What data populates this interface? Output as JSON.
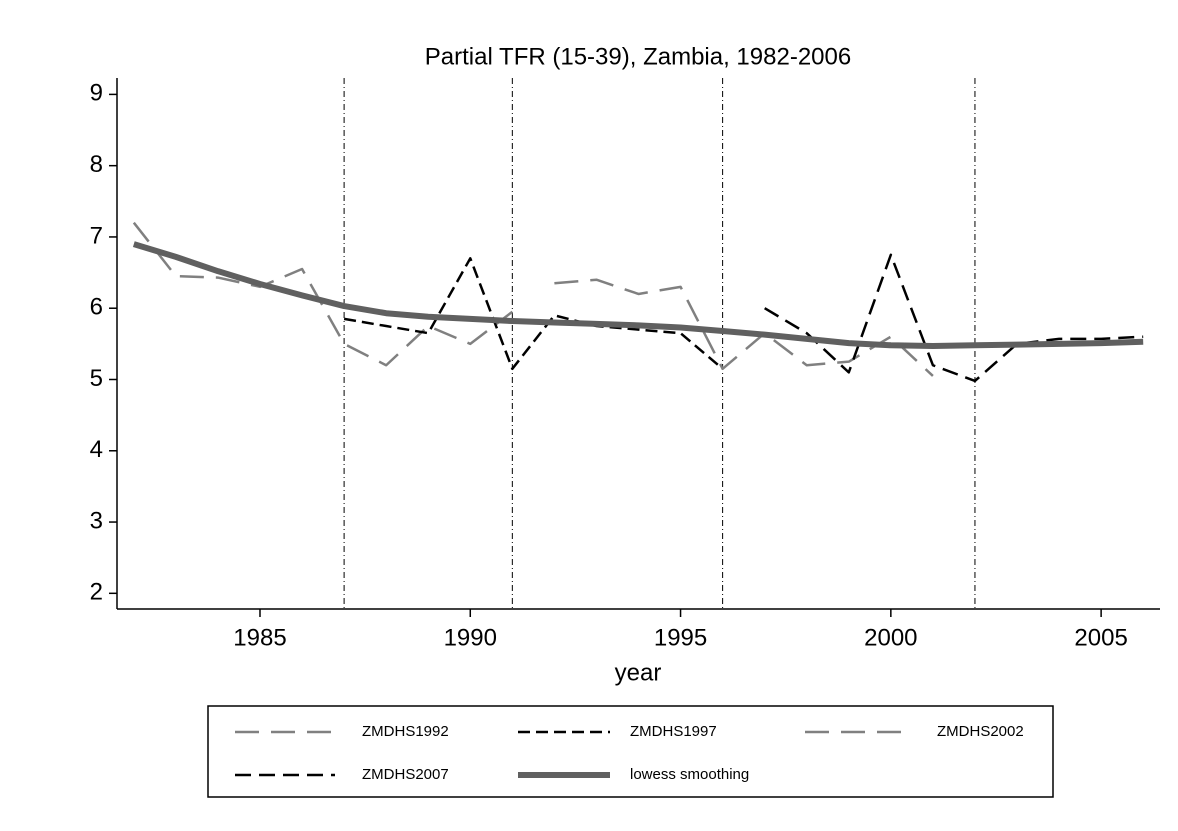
{
  "chart_data": {
    "type": "line",
    "title": "Partial TFR (15-39), Zambia, 1982-2006",
    "x_label": "year",
    "xlim": [
      1981.6,
      2006.4
    ],
    "xticks": [
      1985,
      1990,
      1995,
      2000,
      2005
    ],
    "ylim": [
      1.78,
      9.23
    ],
    "yticks": [
      2,
      3,
      4,
      5,
      6,
      7,
      8,
      9
    ],
    "reference_lines": [
      1987,
      1991,
      1996,
      2002
    ],
    "series": [
      {
        "name": "ZMDHS1992",
        "color": "#808080",
        "dash": "24,12",
        "width": 2.5,
        "x": [
          1982,
          1983,
          1984,
          1985,
          1986,
          1987,
          1988,
          1989,
          1990,
          1991
        ],
        "values": [
          7.2,
          6.45,
          6.43,
          6.3,
          6.55,
          5.5,
          5.2,
          5.75,
          5.5,
          5.95
        ]
      },
      {
        "name": "ZMDHS1997",
        "color": "#000000",
        "dash": "12,6",
        "width": 2.5,
        "x": [
          1987,
          1988,
          1989,
          1990,
          1991,
          1992,
          1993,
          1994,
          1995,
          1996
        ],
        "values": [
          5.85,
          5.75,
          5.65,
          6.7,
          5.15,
          5.9,
          5.75,
          5.7,
          5.65,
          5.15
        ]
      },
      {
        "name": "ZMDHS2002",
        "color": "#808080",
        "dash": "24,12",
        "width": 2.5,
        "x": [
          1992,
          1993,
          1994,
          1995,
          1996,
          1997,
          1998,
          1999,
          2000,
          2001
        ],
        "values": [
          6.35,
          6.4,
          6.2,
          6.3,
          5.15,
          5.65,
          5.2,
          5.25,
          5.6,
          5.05
        ]
      },
      {
        "name": "ZMDHS2007",
        "color": "#000000",
        "dash": "16,8",
        "width": 2.5,
        "x": [
          1997,
          1998,
          1999,
          2000,
          2001,
          2002,
          2003,
          2004,
          2005,
          2006
        ],
        "values": [
          6.0,
          5.65,
          5.1,
          6.75,
          5.2,
          4.98,
          5.5,
          5.57,
          5.57,
          5.6
        ]
      },
      {
        "name": "lowess smoothing",
        "color": "#606060",
        "dash": "none",
        "width": 6,
        "x": [
          1982,
          1983,
          1984,
          1985,
          1986,
          1987,
          1988,
          1989,
          1990,
          1991,
          1992,
          1993,
          1994,
          1995,
          1996,
          1997,
          1998,
          1999,
          2000,
          2001,
          2002,
          2003,
          2004,
          2005,
          2006
        ],
        "values": [
          6.9,
          6.72,
          6.52,
          6.34,
          6.18,
          6.03,
          5.93,
          5.88,
          5.85,
          5.82,
          5.8,
          5.78,
          5.76,
          5.73,
          5.68,
          5.63,
          5.57,
          5.51,
          5.48,
          5.47,
          5.48,
          5.49,
          5.5,
          5.51,
          5.53
        ]
      }
    ]
  }
}
